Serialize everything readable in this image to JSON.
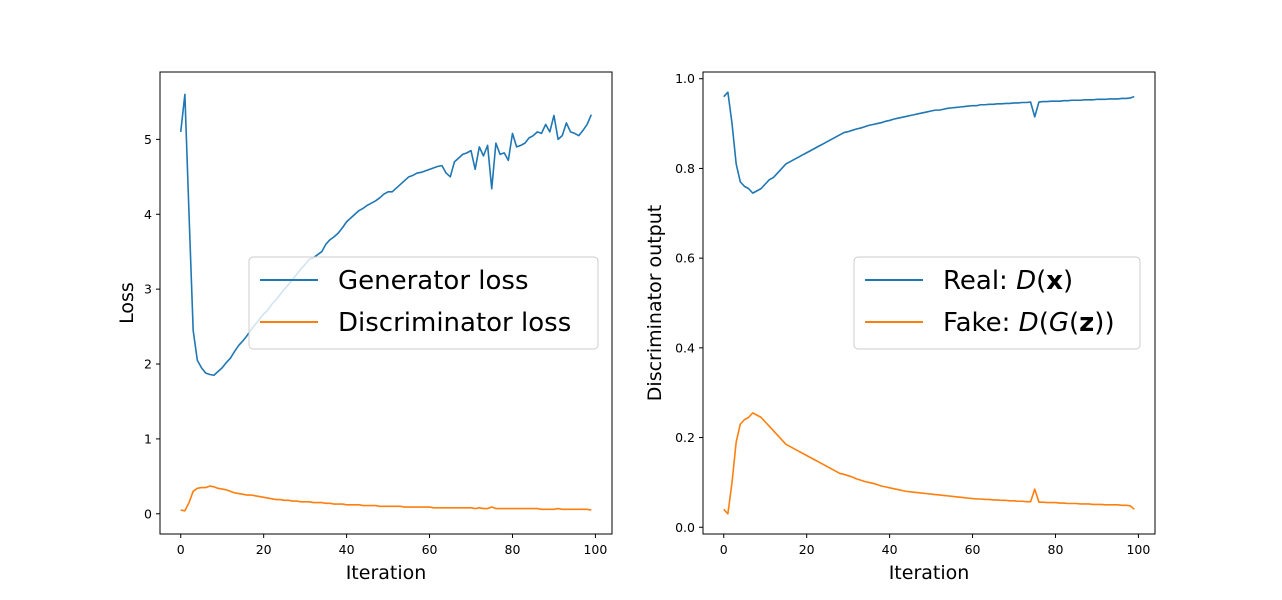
{
  "chart_data": [
    {
      "type": "line",
      "title": "",
      "xlabel": "Iteration",
      "ylabel": "Loss",
      "xlim": [
        -5,
        104
      ],
      "ylim": [
        -0.27,
        5.9
      ],
      "xticks": [
        0,
        20,
        40,
        60,
        80,
        100
      ],
      "yticks": [
        0,
        1,
        2,
        3,
        4,
        5
      ],
      "grid": false,
      "legend_position": "center-right",
      "series": [
        {
          "name": "Generator loss",
          "color": "#1f77b4",
          "x": [
            0,
            1,
            2,
            3,
            4,
            5,
            6,
            7,
            8,
            9,
            10,
            11,
            12,
            13,
            14,
            15,
            16,
            17,
            18,
            19,
            20,
            21,
            22,
            23,
            24,
            25,
            26,
            27,
            28,
            29,
            30,
            31,
            32,
            33,
            34,
            35,
            36,
            37,
            38,
            39,
            40,
            41,
            42,
            43,
            44,
            45,
            46,
            47,
            48,
            49,
            50,
            51,
            52,
            53,
            54,
            55,
            56,
            57,
            58,
            59,
            60,
            61,
            62,
            63,
            64,
            65,
            66,
            67,
            68,
            69,
            70,
            71,
            72,
            73,
            74,
            75,
            76,
            77,
            78,
            79,
            80,
            81,
            82,
            83,
            84,
            85,
            86,
            87,
            88,
            89,
            90,
            91,
            92,
            93,
            94,
            95,
            96,
            97,
            98,
            99
          ],
          "values": [
            5.1,
            5.6,
            4.0,
            2.45,
            2.05,
            1.95,
            1.88,
            1.86,
            1.85,
            1.9,
            1.95,
            2.02,
            2.08,
            2.17,
            2.25,
            2.31,
            2.38,
            2.46,
            2.53,
            2.6,
            2.67,
            2.72,
            2.8,
            2.86,
            2.93,
            3.0,
            3.06,
            3.13,
            3.2,
            3.27,
            3.33,
            3.4,
            3.42,
            3.46,
            3.5,
            3.6,
            3.66,
            3.7,
            3.75,
            3.82,
            3.9,
            3.95,
            4.0,
            4.05,
            4.08,
            4.12,
            4.15,
            4.18,
            4.22,
            4.27,
            4.3,
            4.3,
            4.35,
            4.4,
            4.45,
            4.5,
            4.52,
            4.55,
            4.56,
            4.58,
            4.6,
            4.62,
            4.64,
            4.65,
            4.55,
            4.5,
            4.7,
            4.75,
            4.8,
            4.82,
            4.85,
            4.6,
            4.9,
            4.78,
            4.92,
            4.34,
            4.95,
            4.8,
            4.82,
            4.72,
            5.08,
            4.9,
            4.92,
            4.95,
            5.02,
            5.05,
            5.1,
            5.08,
            5.2,
            5.1,
            5.32,
            5.0,
            5.05,
            5.22,
            5.1,
            5.08,
            5.05,
            5.12,
            5.2,
            5.33
          ]
        },
        {
          "name": "Discriminator loss",
          "color": "#ff7f0e",
          "x": [
            0,
            1,
            2,
            3,
            4,
            5,
            6,
            7,
            8,
            9,
            10,
            11,
            12,
            13,
            14,
            15,
            16,
            17,
            18,
            19,
            20,
            21,
            22,
            23,
            24,
            25,
            26,
            27,
            28,
            29,
            30,
            31,
            32,
            33,
            34,
            35,
            36,
            37,
            38,
            39,
            40,
            41,
            42,
            43,
            44,
            45,
            46,
            47,
            48,
            49,
            50,
            51,
            52,
            53,
            54,
            55,
            56,
            57,
            58,
            59,
            60,
            61,
            62,
            63,
            64,
            65,
            66,
            67,
            68,
            69,
            70,
            71,
            72,
            73,
            74,
            75,
            76,
            77,
            78,
            79,
            80,
            81,
            82,
            83,
            84,
            85,
            86,
            87,
            88,
            89,
            90,
            91,
            92,
            93,
            94,
            95,
            96,
            97,
            98,
            99
          ],
          "values": [
            0.05,
            0.04,
            0.15,
            0.3,
            0.34,
            0.35,
            0.35,
            0.37,
            0.36,
            0.34,
            0.33,
            0.32,
            0.3,
            0.28,
            0.27,
            0.26,
            0.25,
            0.25,
            0.24,
            0.23,
            0.22,
            0.21,
            0.2,
            0.19,
            0.19,
            0.18,
            0.18,
            0.17,
            0.17,
            0.16,
            0.16,
            0.16,
            0.15,
            0.15,
            0.15,
            0.14,
            0.14,
            0.13,
            0.13,
            0.13,
            0.12,
            0.12,
            0.12,
            0.12,
            0.11,
            0.11,
            0.11,
            0.11,
            0.1,
            0.1,
            0.1,
            0.1,
            0.1,
            0.1,
            0.09,
            0.09,
            0.09,
            0.09,
            0.09,
            0.09,
            0.09,
            0.08,
            0.08,
            0.08,
            0.08,
            0.08,
            0.08,
            0.08,
            0.08,
            0.08,
            0.08,
            0.07,
            0.08,
            0.07,
            0.07,
            0.09,
            0.07,
            0.07,
            0.07,
            0.07,
            0.07,
            0.07,
            0.07,
            0.07,
            0.07,
            0.07,
            0.07,
            0.06,
            0.06,
            0.06,
            0.06,
            0.07,
            0.06,
            0.06,
            0.06,
            0.06,
            0.06,
            0.06,
            0.06,
            0.05
          ]
        }
      ]
    },
    {
      "type": "line",
      "title": "",
      "xlabel": "Iteration",
      "ylabel": "Discriminator output",
      "xlim": [
        -5,
        104
      ],
      "ylim": [
        -0.015,
        1.015
      ],
      "xticks": [
        0,
        20,
        40,
        60,
        80,
        100
      ],
      "yticks": [
        0.0,
        0.2,
        0.4,
        0.6,
        0.8,
        1.0
      ],
      "grid": false,
      "legend_position": "center-right",
      "series": [
        {
          "name": "Real: D(x)",
          "color": "#1f77b4",
          "x": [
            0,
            1,
            2,
            3,
            4,
            5,
            6,
            7,
            8,
            9,
            10,
            11,
            12,
            13,
            14,
            15,
            16,
            17,
            18,
            19,
            20,
            21,
            22,
            23,
            24,
            25,
            26,
            27,
            28,
            29,
            30,
            31,
            32,
            33,
            34,
            35,
            36,
            37,
            38,
            39,
            40,
            41,
            42,
            43,
            44,
            45,
            46,
            47,
            48,
            49,
            50,
            51,
            52,
            53,
            54,
            55,
            56,
            57,
            58,
            59,
            60,
            61,
            62,
            63,
            64,
            65,
            66,
            67,
            68,
            69,
            70,
            71,
            72,
            73,
            74,
            75,
            76,
            77,
            78,
            79,
            80,
            81,
            82,
            83,
            84,
            85,
            86,
            87,
            88,
            89,
            90,
            91,
            92,
            93,
            94,
            95,
            96,
            97,
            98,
            99
          ],
          "values": [
            0.96,
            0.97,
            0.9,
            0.81,
            0.77,
            0.76,
            0.755,
            0.745,
            0.75,
            0.755,
            0.765,
            0.775,
            0.78,
            0.79,
            0.8,
            0.81,
            0.815,
            0.82,
            0.825,
            0.83,
            0.835,
            0.84,
            0.845,
            0.85,
            0.855,
            0.86,
            0.865,
            0.87,
            0.875,
            0.88,
            0.882,
            0.885,
            0.888,
            0.89,
            0.893,
            0.896,
            0.898,
            0.9,
            0.902,
            0.905,
            0.907,
            0.91,
            0.912,
            0.914,
            0.916,
            0.918,
            0.92,
            0.922,
            0.924,
            0.926,
            0.928,
            0.93,
            0.93,
            0.932,
            0.934,
            0.935,
            0.936,
            0.937,
            0.938,
            0.939,
            0.94,
            0.94,
            0.942,
            0.942,
            0.943,
            0.943,
            0.944,
            0.944,
            0.945,
            0.945,
            0.946,
            0.946,
            0.947,
            0.947,
            0.948,
            0.915,
            0.948,
            0.949,
            0.949,
            0.95,
            0.95,
            0.95,
            0.951,
            0.951,
            0.952,
            0.952,
            0.952,
            0.953,
            0.953,
            0.953,
            0.954,
            0.954,
            0.954,
            0.955,
            0.955,
            0.955,
            0.956,
            0.956,
            0.957,
            0.96
          ]
        },
        {
          "name": "Fake: D(G(z))",
          "color": "#ff7f0e",
          "x": [
            0,
            1,
            2,
            3,
            4,
            5,
            6,
            7,
            8,
            9,
            10,
            11,
            12,
            13,
            14,
            15,
            16,
            17,
            18,
            19,
            20,
            21,
            22,
            23,
            24,
            25,
            26,
            27,
            28,
            29,
            30,
            31,
            32,
            33,
            34,
            35,
            36,
            37,
            38,
            39,
            40,
            41,
            42,
            43,
            44,
            45,
            46,
            47,
            48,
            49,
            50,
            51,
            52,
            53,
            54,
            55,
            56,
            57,
            58,
            59,
            60,
            61,
            62,
            63,
            64,
            65,
            66,
            67,
            68,
            69,
            70,
            71,
            72,
            73,
            74,
            75,
            76,
            77,
            78,
            79,
            80,
            81,
            82,
            83,
            84,
            85,
            86,
            87,
            88,
            89,
            90,
            91,
            92,
            93,
            94,
            95,
            96,
            97,
            98,
            99
          ],
          "values": [
            0.04,
            0.03,
            0.1,
            0.19,
            0.23,
            0.24,
            0.245,
            0.255,
            0.25,
            0.245,
            0.235,
            0.225,
            0.215,
            0.205,
            0.195,
            0.185,
            0.18,
            0.175,
            0.17,
            0.165,
            0.16,
            0.155,
            0.15,
            0.145,
            0.14,
            0.135,
            0.13,
            0.125,
            0.12,
            0.118,
            0.115,
            0.112,
            0.108,
            0.105,
            0.102,
            0.1,
            0.098,
            0.095,
            0.092,
            0.09,
            0.088,
            0.086,
            0.084,
            0.082,
            0.08,
            0.079,
            0.078,
            0.077,
            0.076,
            0.075,
            0.074,
            0.073,
            0.072,
            0.071,
            0.07,
            0.069,
            0.068,
            0.067,
            0.066,
            0.065,
            0.064,
            0.063,
            0.063,
            0.062,
            0.062,
            0.061,
            0.061,
            0.06,
            0.06,
            0.059,
            0.059,
            0.058,
            0.058,
            0.057,
            0.057,
            0.085,
            0.056,
            0.056,
            0.055,
            0.055,
            0.055,
            0.054,
            0.054,
            0.053,
            0.053,
            0.053,
            0.052,
            0.052,
            0.052,
            0.051,
            0.051,
            0.051,
            0.05,
            0.05,
            0.05,
            0.05,
            0.049,
            0.049,
            0.048,
            0.04
          ]
        }
      ]
    }
  ]
}
